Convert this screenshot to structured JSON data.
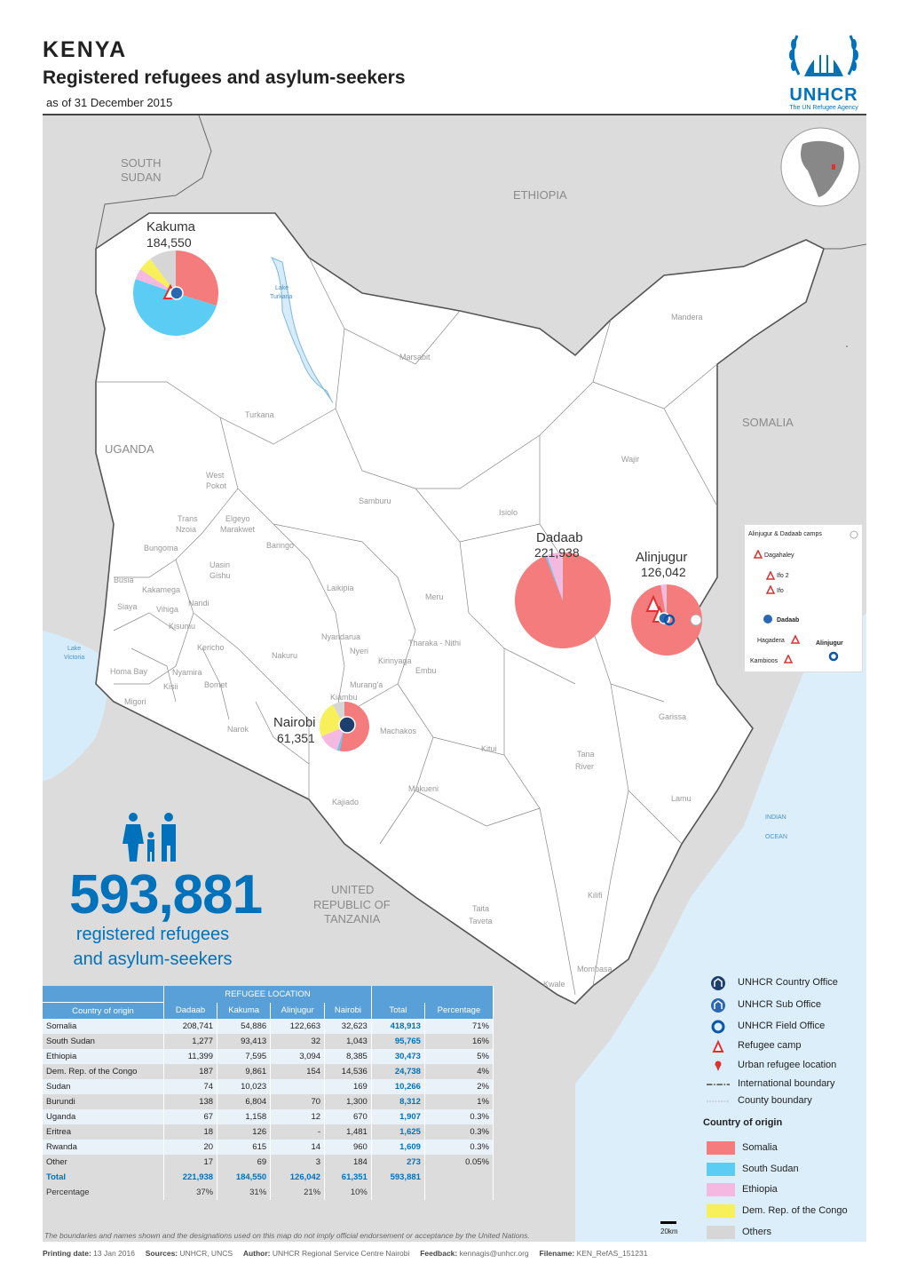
{
  "header": {
    "title": "KENYA",
    "subtitle": "Registered refugees and asylum-seekers",
    "as_of": "as of 31 December 2015",
    "logo_text": "UNHCR",
    "logo_sub": "The UN Refugee Agency"
  },
  "map": {
    "countries": [
      "SOUTH",
      "SUDAN",
      "ETHIOPIA",
      "SOMALIA",
      "UGANDA",
      "UNITED",
      "REPUBLIC OF",
      "TANZANIA"
    ],
    "water": [
      "Lake",
      "Turkana",
      "Lake",
      "Victoria",
      "INDIAN",
      "OCEAN"
    ],
    "counties": [
      "Turkana",
      "Marsabit",
      "Mandera",
      "Wajir",
      "West",
      "Pokot",
      "Samburu",
      "Isiolo",
      "Trans",
      "Nzoia",
      "Elgeyo",
      "Marakwet",
      "Bungoma",
      "Uasin",
      "Gishu",
      "Baringo",
      "Laikipia",
      "Meru",
      "Busia",
      "Kakamega",
      "Nandi",
      "Siaya",
      "Vihiga",
      "Kisumu",
      "Kericho",
      "Nyandarua",
      "Nyeri",
      "Tharaka - Nithi",
      "Kirinyaga",
      "Embu",
      "Nakuru",
      "Homa Bay",
      "Nyamira",
      "Kisii",
      "Bomet",
      "Migori",
      "Narok",
      "Murang'a",
      "Kiambu",
      "Machakos",
      "Kitui",
      "Tana",
      "River",
      "Garissa",
      "Lamu",
      "Makueni",
      "Kajiado",
      "Taita",
      "Taveta",
      "Kilifi",
      "Mombasa",
      "Kwale"
    ]
  },
  "camps": [
    {
      "name": "Kakuma",
      "value": "184,550"
    },
    {
      "name": "Dadaab",
      "value": "221,938"
    },
    {
      "name": "Alinjugur",
      "value": "126,042"
    },
    {
      "name": "Nairobi",
      "value": "61,351"
    }
  ],
  "inset": {
    "title": "Alinjugur & Dadaab camps",
    "items": [
      "Dagahaley",
      "Ifo 2",
      "Ifo",
      "Dadaab",
      "Hagadera",
      "Alinjugur",
      "Kambioos"
    ]
  },
  "headline": {
    "number": "593,881",
    "line1": "registered refugees",
    "line2": "and asylum-seekers"
  },
  "table": {
    "group_header": "REFUGEE LOCATION",
    "columns": [
      "Country of origin",
      "Dadaab",
      "Kakuma",
      "Alinjugur",
      "Nairobi",
      "Total",
      "Percentage"
    ],
    "rows": [
      [
        "Somalia",
        "208,741",
        "54,886",
        "122,663",
        "32,623",
        "418,913",
        "71%"
      ],
      [
        "South Sudan",
        "1,277",
        "93,413",
        "32",
        "1,043",
        "95,765",
        "16%"
      ],
      [
        "Ethiopia",
        "11,399",
        "7,595",
        "3,094",
        "8,385",
        "30,473",
        "5%"
      ],
      [
        "Dem. Rep. of the Congo",
        "187",
        "9,861",
        "154",
        "14,536",
        "24,738",
        "4%"
      ],
      [
        "Sudan",
        "74",
        "10,023",
        "",
        "169",
        "10,266",
        "2%"
      ],
      [
        "Burundi",
        "138",
        "6,804",
        "70",
        "1,300",
        "8,312",
        "1%"
      ],
      [
        "Uganda",
        "67",
        "1,158",
        "12",
        "670",
        "1,907",
        "0.3%"
      ],
      [
        "Eritrea",
        "18",
        "126",
        "-",
        "1,481",
        "1,625",
        "0.3%"
      ],
      [
        "Rwanda",
        "20",
        "615",
        "14",
        "960",
        "1,609",
        "0.3%"
      ],
      [
        "Other",
        "17",
        "69",
        "3",
        "184",
        "273",
        "0.05%"
      ]
    ],
    "total_row": [
      "Total",
      "221,938",
      "184,550",
      "126,042",
      "61,351",
      "593,881",
      ""
    ],
    "pct_row": [
      "Percentage",
      "37%",
      "31%",
      "21%",
      "10%",
      "",
      ""
    ]
  },
  "legend": {
    "symbols": [
      {
        "icon": "unhcr-country-office-icon",
        "label": "UNHCR Country Office"
      },
      {
        "icon": "unhcr-sub-office-icon",
        "label": "UNHCR Sub Office"
      },
      {
        "icon": "unhcr-field-office-icon",
        "label": "UNHCR Field Office"
      },
      {
        "icon": "refugee-camp-icon",
        "label": "Refugee camp"
      },
      {
        "icon": "urban-location-icon",
        "label": "Urban refugee location"
      },
      {
        "icon": "international-boundary-line",
        "label": "International boundary"
      },
      {
        "icon": "county-boundary-line",
        "label": "County boundary"
      }
    ],
    "origin_heading": "Country of origin",
    "origins": [
      {
        "label": "Somalia",
        "color": "#f47c7c"
      },
      {
        "label": "South Sudan",
        "color": "#5bcdf5"
      },
      {
        "label": "Ethiopia",
        "color": "#f5b8e0"
      },
      {
        "label": "Dem. Rep. of the Congo",
        "color": "#f7f05a"
      },
      {
        "label": "Others",
        "color": "#d6d6d6"
      }
    ]
  },
  "footer": {
    "scale": "20km",
    "disclaimer": "The boundaries and names shown and the designations used on this map do not imply official endorsement or acceptance by the United Nations.",
    "printing_label": "Printing date:",
    "printing_value": "13 Jan 2016",
    "sources_label": "Sources:",
    "sources_value": "UNHCR, UNCS",
    "author_label": "Author:",
    "author_value": "UNHCR Regional Service Centre Nairobi",
    "feedback_label": "Feedback:",
    "feedback_value": "kennagis@unhcr.org",
    "filename_label": "Filename:",
    "filename_value": "KEN_RefAS_151231"
  }
}
